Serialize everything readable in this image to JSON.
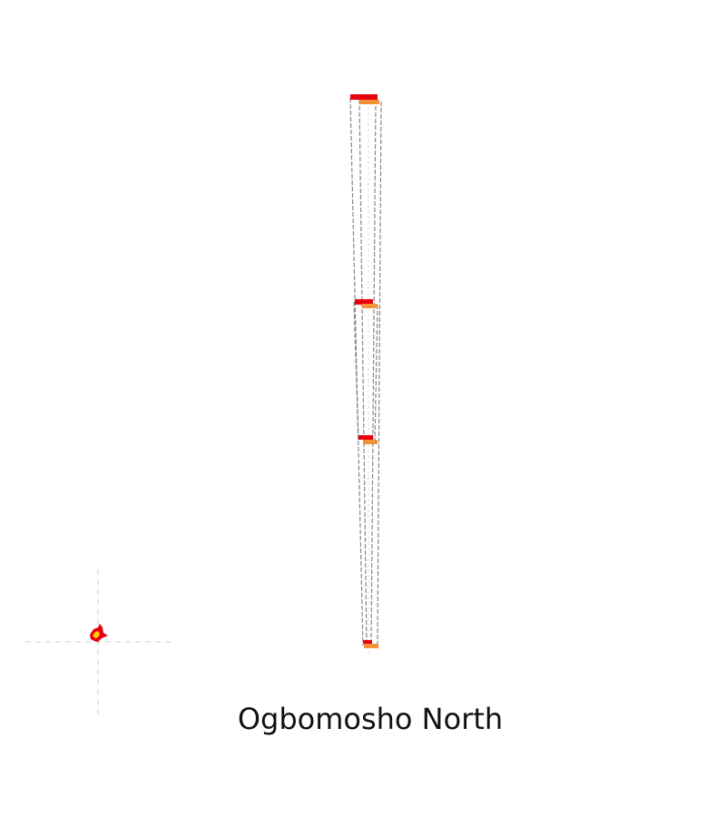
{
  "map": {
    "title": "Ogbomosho North",
    "colors": {
      "background": "#ffffff",
      "guide_line": "#cfcfcf",
      "connector_line": "#888888",
      "primary_marker": "#e8000e",
      "secondary_marker": "#f5913c",
      "location_fill": "#ffd000",
      "location_outline": "#e8000e",
      "title_text": "#111111"
    },
    "icons": {
      "location": "region-locator-icon"
    }
  }
}
